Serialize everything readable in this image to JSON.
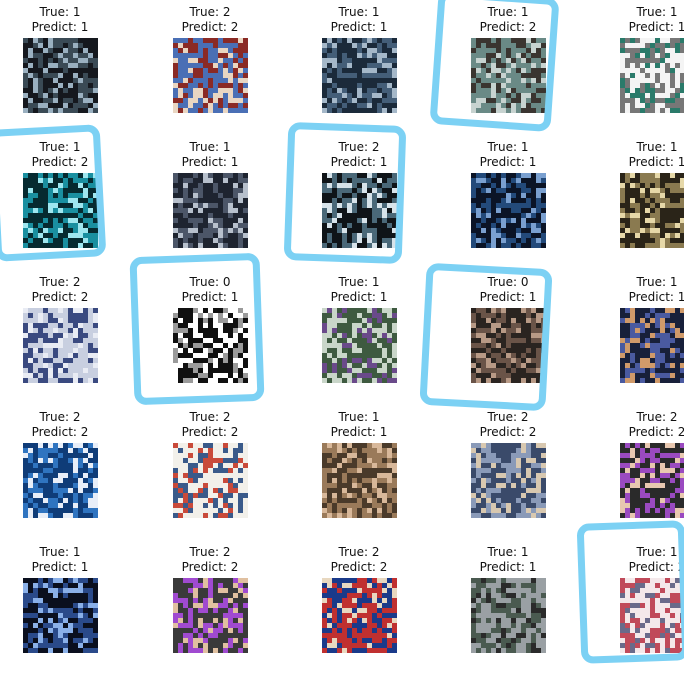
{
  "grid": {
    "rows": 5,
    "cols": 5,
    "items": [
      {
        "true_text": "True: 1",
        "pred_text": "Predict: 1",
        "image": "night-crowd-stage-photo",
        "colors": [
          "#15181e",
          "#3a4a55",
          "#9ab0c0"
        ],
        "highlighted": false
      },
      {
        "true_text": "True: 2",
        "pred_text": "Predict: 2",
        "image": "group-photo-with-banner",
        "colors": [
          "#4a6fb5",
          "#8a2a25",
          "#e9d6c2"
        ],
        "highlighted": false
      },
      {
        "true_text": "True: 1",
        "pred_text": "Predict: 1",
        "image": "dense-crowd-photo",
        "colors": [
          "#1b2a3a",
          "#445e78",
          "#a5b8c9"
        ],
        "highlighted": false
      },
      {
        "true_text": "True: 1",
        "pred_text": "Predict: 2",
        "image": "street-crowd-photo",
        "colors": [
          "#6a8a86",
          "#3a3530",
          "#c7d3d0"
        ],
        "highlighted": true
      },
      {
        "true_text": "True: 1",
        "pred_text": "Predict: 1",
        "image": "text-document-image",
        "colors": [
          "#f4f4f4",
          "#777777",
          "#2a7a6a"
        ],
        "highlighted": false
      },
      {
        "true_text": "True: 1",
        "pred_text": "Predict: 2",
        "image": "blue-lit-crowd-photo",
        "colors": [
          "#062a30",
          "#1a8fa0",
          "#9fe6ef"
        ],
        "highlighted": true
      },
      {
        "true_text": "True: 1",
        "pred_text": "Predict: 1",
        "image": "night-street-crowd-photo",
        "colors": [
          "#1e2430",
          "#4c5668",
          "#b7c0cc"
        ],
        "highlighted": false
      },
      {
        "true_text": "True: 2",
        "pred_text": "Predict: 1",
        "image": "night-protest-photo",
        "colors": [
          "#0f1418",
          "#4a6878",
          "#d7e3ea"
        ],
        "highlighted": true
      },
      {
        "true_text": "True: 1",
        "pred_text": "Predict: 1",
        "image": "blue-night-crowd-photo",
        "colors": [
          "#0b1426",
          "#234a7a",
          "#7aa0d0"
        ],
        "highlighted": false
      },
      {
        "true_text": "True: 1",
        "pred_text": "Predict: 1",
        "image": "crowd-with-lights-photo",
        "colors": [
          "#2a2418",
          "#8a7a50",
          "#e6d8a8"
        ],
        "highlighted": false
      },
      {
        "true_text": "True: 2",
        "pred_text": "Predict: 2",
        "image": "monument-illustration",
        "colors": [
          "#c8cfe0",
          "#3a4a80",
          "#e9ecf4"
        ],
        "highlighted": false
      },
      {
        "true_text": "True: 0",
        "pred_text": "Predict: 1",
        "image": "black-text-document-image",
        "colors": [
          "#101010",
          "#ffffff",
          "#9a9a9a"
        ],
        "highlighted": true
      },
      {
        "true_text": "True: 1",
        "pred_text": "Predict: 1",
        "image": "crowd-under-arch-photo",
        "colors": [
          "#3e5a40",
          "#c9d6c9",
          "#6a4a8a"
        ],
        "highlighted": false
      },
      {
        "true_text": "True: 0",
        "pred_text": "Predict: 1",
        "image": "handshake-photo",
        "colors": [
          "#2a2420",
          "#6a5448",
          "#b89a86"
        ],
        "highlighted": true
      },
      {
        "true_text": "True: 1",
        "pred_text": "Predict: 1",
        "image": "colorful-night-crowd-photo",
        "colors": [
          "#18203a",
          "#4a5aa0",
          "#d09a6a"
        ],
        "highlighted": false
      },
      {
        "true_text": "True: 2",
        "pred_text": "Predict: 2",
        "image": "blue-poster-image",
        "colors": [
          "#0f3c78",
          "#2f74c0",
          "#e8eef8"
        ],
        "highlighted": false
      },
      {
        "true_text": "True: 2",
        "pred_text": "Predict: 2",
        "image": "news-collage-image",
        "colors": [
          "#f2f0ea",
          "#3a5a8a",
          "#c94a3a"
        ],
        "highlighted": false
      },
      {
        "true_text": "True: 1",
        "pred_text": "Predict: 1",
        "image": "two-people-photo",
        "colors": [
          "#4a3a2a",
          "#9a7a5a",
          "#d8b89a"
        ],
        "highlighted": false
      },
      {
        "true_text": "True: 2",
        "pred_text": "Predict: 2",
        "image": "costumed-figures-photo",
        "colors": [
          "#3a4a6a",
          "#8a9ab8",
          "#d8c8b0"
        ],
        "highlighted": false
      },
      {
        "true_text": "True: 2",
        "pred_text": "Predict: 2",
        "image": "portrait-collage-image",
        "colors": [
          "#2a2a2a",
          "#9a4ac0",
          "#e8c8b0"
        ],
        "highlighted": false
      },
      {
        "true_text": "True: 1",
        "pred_text": "Predict: 1",
        "image": "concert-crowd-photo",
        "colors": [
          "#0a0f1e",
          "#2a4a8a",
          "#8ab0e8"
        ],
        "highlighted": false
      },
      {
        "true_text": "True: 2",
        "pred_text": "Predict: 2",
        "image": "poster-with-portraits",
        "colors": [
          "#3a3a3a",
          "#a04ad0",
          "#e0c0a0"
        ],
        "highlighted": false
      },
      {
        "true_text": "True: 2",
        "pred_text": "Predict: 2",
        "image": "speaker-with-flag-photo",
        "colors": [
          "#c03030",
          "#1a3a8a",
          "#e8d8c0"
        ],
        "highlighted": false
      },
      {
        "true_text": "True: 1",
        "pred_text": "Predict: 1",
        "image": "city-street-crowd-photo",
        "colors": [
          "#9aa0a4",
          "#4a5a50",
          "#2a2a2a"
        ],
        "highlighted": false
      },
      {
        "true_text": "True: 1",
        "pred_text": "Predict: 2",
        "image": "selfie-photo",
        "colors": [
          "#f4e8ea",
          "#c04a5a",
          "#6a6a8a"
        ],
        "highlighted": true
      }
    ]
  },
  "annotation": {
    "color": "#7cd1f4"
  }
}
